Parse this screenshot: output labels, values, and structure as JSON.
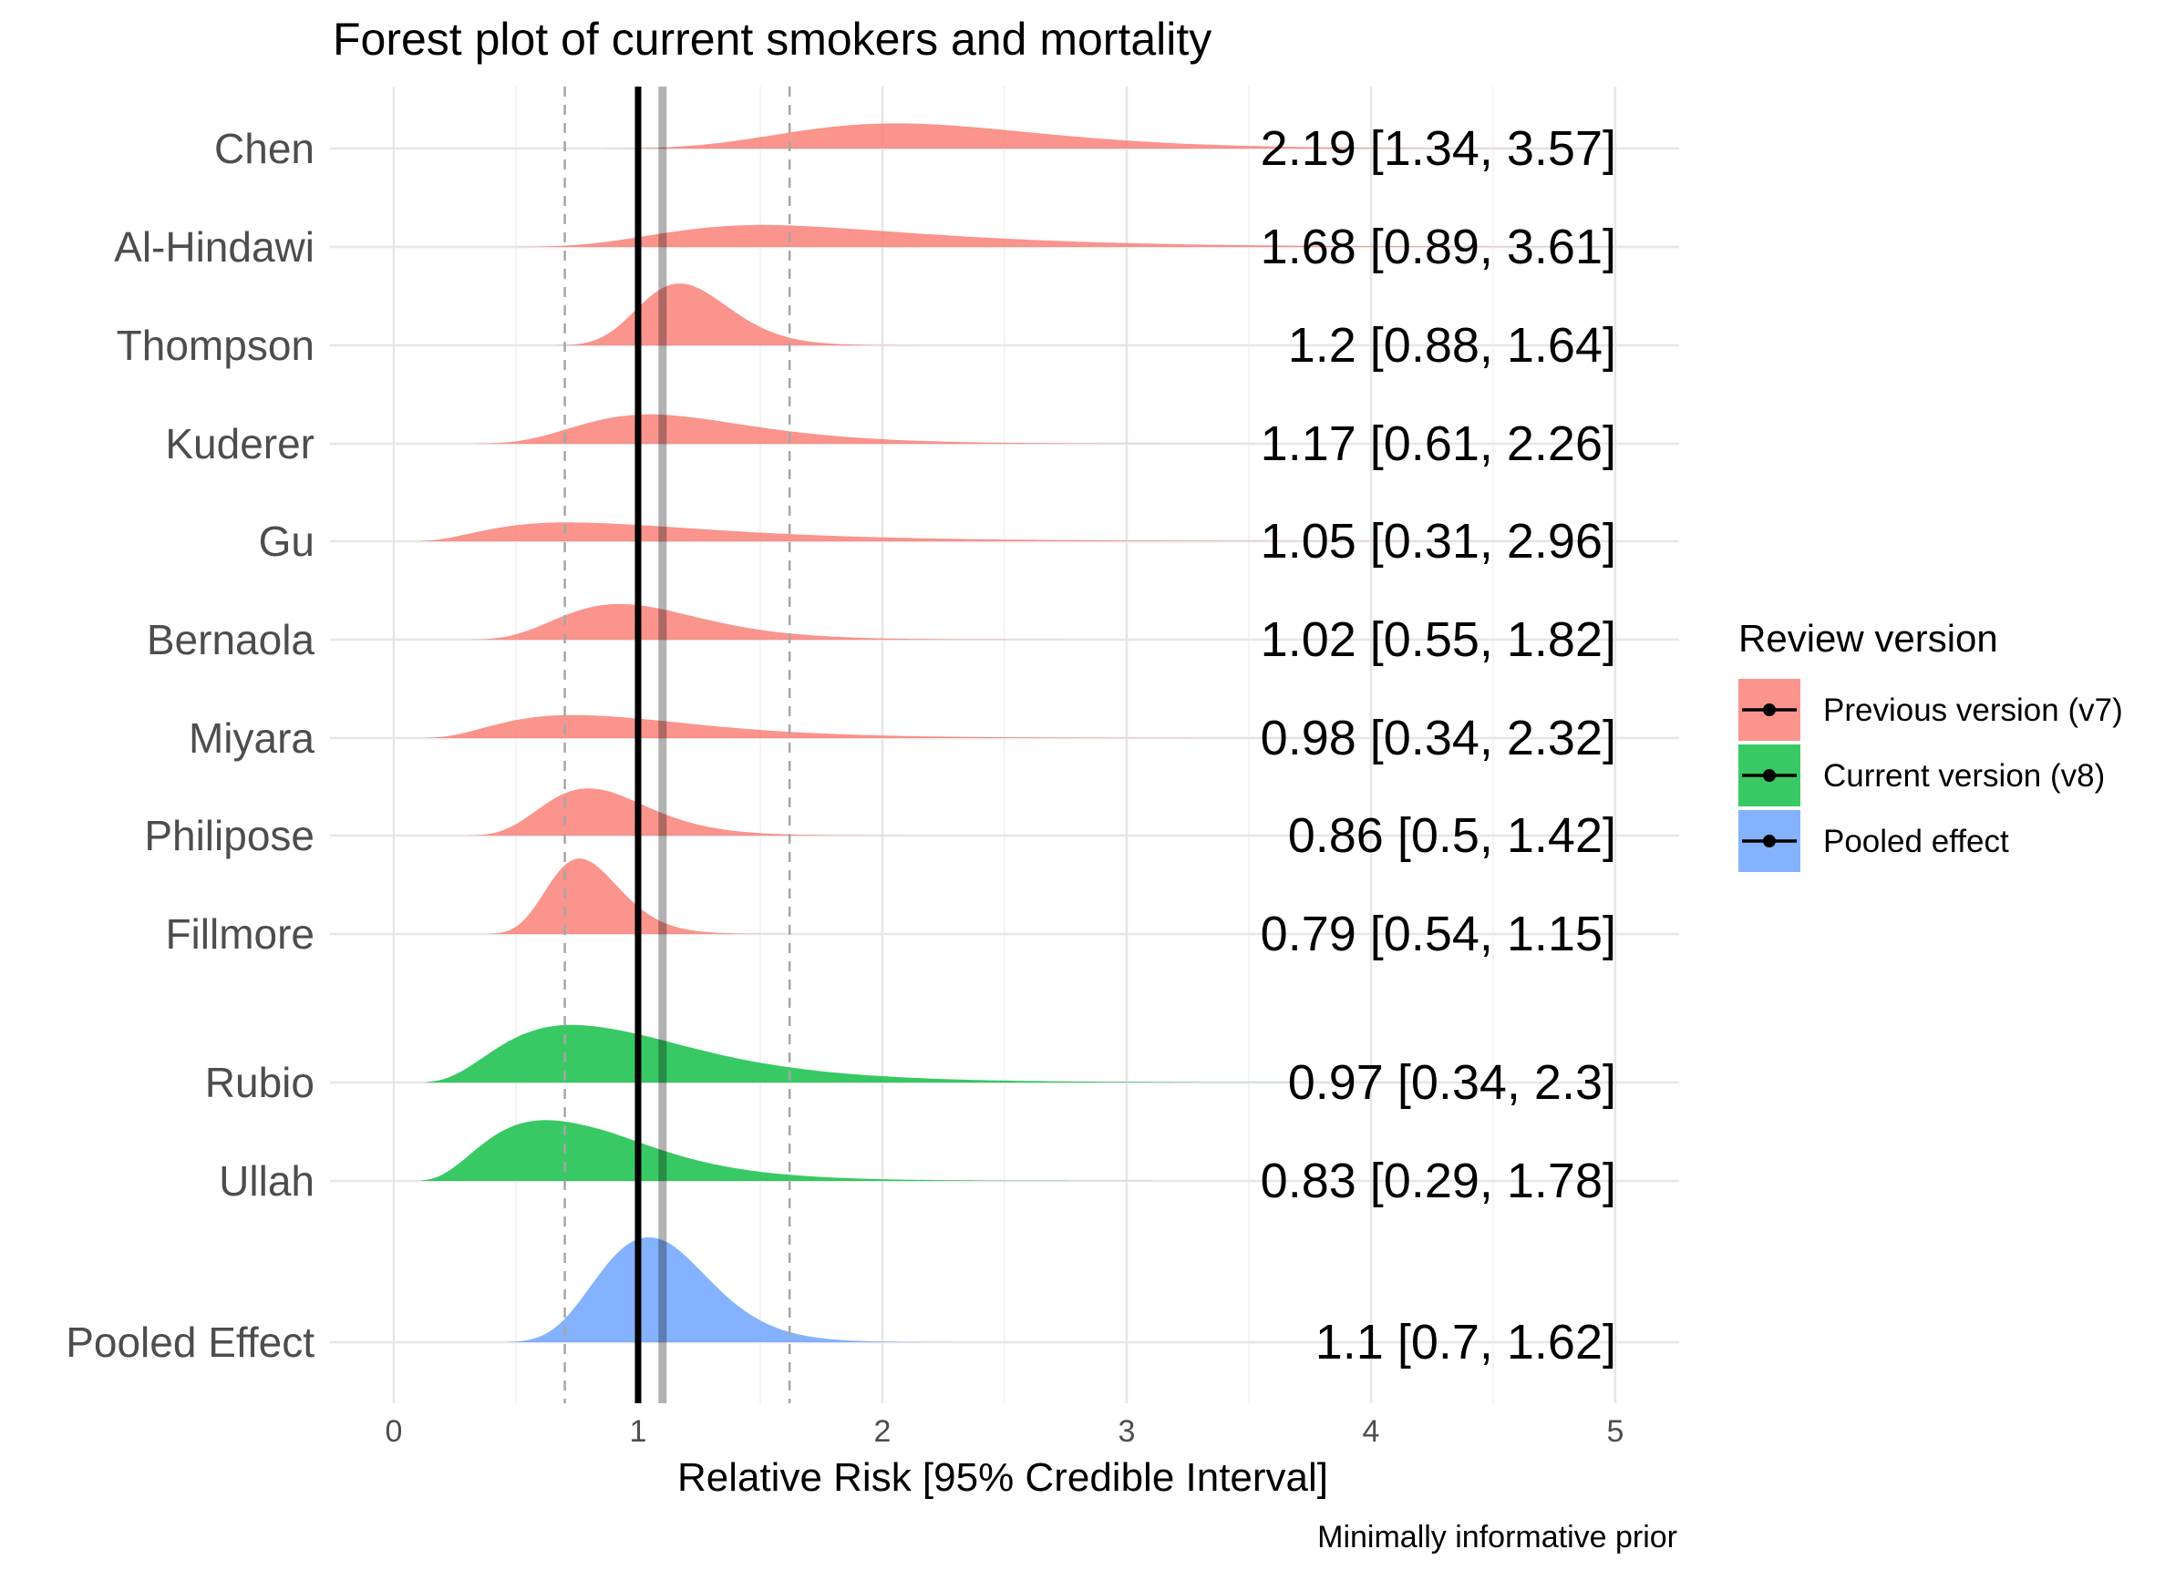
{
  "chart_data": {
    "type": "forest-density",
    "title": "Forest plot of current smokers and mortality",
    "xlabel": "Relative Risk [95% Credible Interval]",
    "ylabel": "",
    "caption": "Minimally informative prior",
    "xlim": [
      0,
      5
    ],
    "x_ticks": [
      "0",
      "1",
      "2",
      "3",
      "4",
      "5"
    ],
    "grid": true,
    "reference_lines": {
      "null_effect": 1,
      "pooled_mean": 1.1,
      "pooled_lower": 0.7,
      "pooled_upper": 1.62
    },
    "legend": {
      "title": "Review version",
      "position": "right",
      "items": [
        {
          "label": "Previous version (v7)",
          "color": "#F8766D"
        },
        {
          "label": "Current version (v8)",
          "color": "#00BA38"
        },
        {
          "label": "Pooled effect",
          "color": "#619CFF"
        }
      ]
    },
    "studies": [
      {
        "study": "Chen",
        "group": 0,
        "mean": 2.19,
        "lower": 1.34,
        "upper": 3.57,
        "label": "2.19 [1.34, 3.57]"
      },
      {
        "study": "Al-Hindawi",
        "group": 0,
        "mean": 1.68,
        "lower": 0.89,
        "upper": 3.61,
        "label": "1.68 [0.89, 3.61]"
      },
      {
        "study": "Thompson",
        "group": 0,
        "mean": 1.2,
        "lower": 0.88,
        "upper": 1.64,
        "label": "1.2 [0.88, 1.64]"
      },
      {
        "study": "Kuderer",
        "group": 0,
        "mean": 1.17,
        "lower": 0.61,
        "upper": 2.26,
        "label": "1.17 [0.61, 2.26]"
      },
      {
        "study": "Gu",
        "group": 0,
        "mean": 1.05,
        "lower": 0.31,
        "upper": 2.96,
        "label": "1.05 [0.31, 2.96]"
      },
      {
        "study": "Bernaola",
        "group": 0,
        "mean": 1.02,
        "lower": 0.55,
        "upper": 1.82,
        "label": "1.02 [0.55, 1.82]"
      },
      {
        "study": "Miyara",
        "group": 0,
        "mean": 0.98,
        "lower": 0.34,
        "upper": 2.32,
        "label": "0.98 [0.34, 2.32]"
      },
      {
        "study": "Philipose",
        "group": 0,
        "mean": 0.86,
        "lower": 0.5,
        "upper": 1.42,
        "label": "0.86 [0.5, 1.42]"
      },
      {
        "study": "Fillmore",
        "group": 0,
        "mean": 0.79,
        "lower": 0.54,
        "upper": 1.15,
        "label": "0.79 [0.54, 1.15]"
      },
      {
        "study": "Rubio",
        "group": 1,
        "mean": 0.97,
        "lower": 0.34,
        "upper": 2.3,
        "label": "0.97 [0.34, 2.3]"
      },
      {
        "study": "Ullah",
        "group": 1,
        "mean": 0.83,
        "lower": 0.29,
        "upper": 1.78,
        "label": "0.83 [0.29, 1.78]"
      },
      {
        "study": "Pooled Effect",
        "group": 2,
        "mean": 1.1,
        "lower": 0.7,
        "upper": 1.62,
        "label": "1.1 [0.7, 1.62]"
      }
    ]
  }
}
